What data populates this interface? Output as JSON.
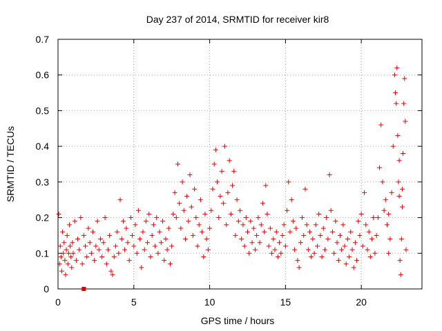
{
  "chart_data": {
    "type": "scatter",
    "title": "Day 237 of 2014, SRMTID for receiver kir8",
    "xlabel": "GPS time / hours",
    "ylabel": "SRMTID / TECUs",
    "xlim": [
      0,
      24
    ],
    "ylim": [
      0,
      0.7
    ],
    "xticks": [
      0,
      5,
      10,
      15,
      20
    ],
    "xtick_labels": [
      "0",
      "5",
      "10",
      "15",
      "20"
    ],
    "yticks": [
      0,
      0.1,
      0.2,
      0.3,
      0.4,
      0.5,
      0.6,
      0.7
    ],
    "ytick_labels": [
      "0",
      "0.1",
      "0.2",
      "0.3",
      "0.4",
      "0.5",
      "0.6",
      "0.7"
    ],
    "grid": true,
    "marker": "plus",
    "color": "#e00000",
    "series": [
      {
        "name": "SRMTID",
        "points": [
          [
            0.05,
            0.21
          ],
          [
            0.1,
            0.07
          ],
          [
            0.15,
            0.12
          ],
          [
            0.2,
            0.09
          ],
          [
            0.25,
            0.05
          ],
          [
            0.3,
            0.16
          ],
          [
            0.35,
            0.1
          ],
          [
            0.4,
            0.13
          ],
          [
            0.45,
            0.08
          ],
          [
            0.5,
            0.04
          ],
          [
            0.55,
            0.11
          ],
          [
            0.6,
            0.15
          ],
          [
            0.65,
            0.07
          ],
          [
            0.7,
            0.1
          ],
          [
            0.75,
            0.18
          ],
          [
            0.8,
            0.12
          ],
          [
            0.85,
            0.09
          ],
          [
            0.9,
            0.06
          ],
          [
            0.95,
            0.13
          ],
          [
            1.0,
            0.1
          ],
          [
            1.1,
            0.19
          ],
          [
            1.2,
            0.08
          ],
          [
            1.3,
            0.14
          ],
          [
            1.4,
            0.11
          ],
          [
            1.5,
            0.2
          ],
          [
            1.6,
            0.07
          ],
          [
            1.7,
            0.15
          ],
          [
            1.8,
            0.12
          ],
          [
            1.9,
            0.09
          ],
          [
            2.0,
            0.17
          ],
          [
            2.1,
            0.13
          ],
          [
            2.2,
            0.1
          ],
          [
            2.3,
            0.16
          ],
          [
            2.4,
            0.08
          ],
          [
            2.5,
            0.12
          ],
          [
            2.6,
            0.19
          ],
          [
            2.7,
            0.11
          ],
          [
            2.8,
            0.14
          ],
          [
            2.9,
            0.09
          ],
          [
            3.0,
            0.13
          ],
          [
            3.1,
            0.2
          ],
          [
            3.2,
            0.07
          ],
          [
            3.3,
            0.11
          ],
          [
            3.4,
            0.15
          ],
          [
            3.5,
            0.05
          ],
          [
            3.6,
            0.04
          ],
          [
            3.7,
            0.09
          ],
          [
            3.8,
            0.12
          ],
          [
            3.9,
            0.16
          ],
          [
            4.0,
            0.1
          ],
          [
            4.1,
            0.25
          ],
          [
            4.2,
            0.14
          ],
          [
            4.3,
            0.19
          ],
          [
            4.4,
            0.11
          ],
          [
            4.5,
            0.17
          ],
          [
            4.6,
            0.13
          ],
          [
            4.7,
            0.08
          ],
          [
            4.8,
            0.2
          ],
          [
            4.9,
            0.15
          ],
          [
            5.0,
            0.12
          ],
          [
            5.1,
            0.18
          ],
          [
            5.2,
            0.1
          ],
          [
            5.3,
            0.22
          ],
          [
            5.4,
            0.14
          ],
          [
            5.5,
            0.06
          ],
          [
            5.6,
            0.16
          ],
          [
            5.7,
            0.11
          ],
          [
            5.8,
            0.19
          ],
          [
            5.9,
            0.13
          ],
          [
            6.0,
            0.21
          ],
          [
            6.1,
            0.09
          ],
          [
            6.2,
            0.15
          ],
          [
            6.3,
            0.18
          ],
          [
            6.4,
            0.12
          ],
          [
            6.5,
            0.2
          ],
          [
            6.6,
            0.1
          ],
          [
            6.7,
            0.16
          ],
          [
            6.8,
            0.13
          ],
          [
            6.9,
            0.19
          ],
          [
            7.0,
            0.08
          ],
          [
            7.1,
            0.14
          ],
          [
            7.2,
            0.11
          ],
          [
            7.3,
            0.17
          ],
          [
            7.4,
            0.07
          ],
          [
            7.5,
            0.12
          ],
          [
            7.6,
            0.21
          ],
          [
            7.7,
            0.27
          ],
          [
            7.8,
            0.2
          ],
          [
            7.9,
            0.35
          ],
          [
            8.0,
            0.24
          ],
          [
            8.1,
            0.17
          ],
          [
            8.2,
            0.3
          ],
          [
            8.3,
            0.22
          ],
          [
            8.4,
            0.14
          ],
          [
            8.5,
            0.26
          ],
          [
            8.6,
            0.19
          ],
          [
            8.7,
            0.32
          ],
          [
            8.8,
            0.23
          ],
          [
            8.9,
            0.15
          ],
          [
            9.0,
            0.28
          ],
          [
            9.1,
            0.2
          ],
          [
            9.2,
            0.12
          ],
          [
            9.3,
            0.18
          ],
          [
            9.4,
            0.25
          ],
          [
            9.5,
            0.16
          ],
          [
            9.6,
            0.09
          ],
          [
            9.7,
            0.21
          ],
          [
            9.8,
            0.14
          ],
          [
            9.9,
            0.11
          ],
          [
            10.0,
            0.17
          ],
          [
            10.1,
            0.22
          ],
          [
            10.2,
            0.28
          ],
          [
            10.3,
            0.35
          ],
          [
            10.4,
            0.39
          ],
          [
            10.5,
            0.3
          ],
          [
            10.6,
            0.2
          ],
          [
            10.7,
            0.26
          ],
          [
            10.8,
            0.33
          ],
          [
            10.9,
            0.24
          ],
          [
            11.0,
            0.4
          ],
          [
            11.1,
            0.18
          ],
          [
            11.2,
            0.27
          ],
          [
            11.3,
            0.36
          ],
          [
            11.4,
            0.21
          ],
          [
            11.5,
            0.29
          ],
          [
            11.6,
            0.33
          ],
          [
            11.7,
            0.15
          ],
          [
            11.8,
            0.25
          ],
          [
            11.9,
            0.19
          ],
          [
            12.0,
            0.22
          ],
          [
            12.1,
            0.14
          ],
          [
            12.2,
            0.18
          ],
          [
            12.3,
            0.12
          ],
          [
            12.4,
            0.2
          ],
          [
            12.5,
            0.16
          ],
          [
            12.6,
            0.1
          ],
          [
            12.7,
            0.19
          ],
          [
            12.8,
            0.13
          ],
          [
            12.9,
            0.17
          ],
          [
            13.0,
            0.11
          ],
          [
            13.1,
            0.15
          ],
          [
            13.2,
            0.2
          ],
          [
            13.3,
            0.13
          ],
          [
            13.4,
            0.18
          ],
          [
            13.5,
            0.24
          ],
          [
            13.6,
            0.16
          ],
          [
            13.7,
            0.29
          ],
          [
            13.8,
            0.21
          ],
          [
            13.9,
            0.12
          ],
          [
            14.0,
            0.17
          ],
          [
            14.1,
            0.1
          ],
          [
            14.2,
            0.14
          ],
          [
            14.3,
            0.11
          ],
          [
            14.4,
            0.16
          ],
          [
            14.5,
            0.09
          ],
          [
            14.6,
            0.13
          ],
          [
            14.7,
            0.1
          ],
          [
            14.8,
            0.15
          ],
          [
            14.9,
            0.18
          ],
          [
            15.0,
            0.12
          ],
          [
            15.1,
            0.22
          ],
          [
            15.2,
            0.3
          ],
          [
            15.3,
            0.16
          ],
          [
            15.4,
            0.25
          ],
          [
            15.5,
            0.19
          ],
          [
            15.6,
            0.11
          ],
          [
            15.7,
            0.17
          ],
          [
            15.8,
            0.08
          ],
          [
            15.9,
            0.06
          ],
          [
            16.0,
            0.13
          ],
          [
            16.1,
            0.2
          ],
          [
            16.2,
            0.15
          ],
          [
            16.3,
            0.28
          ],
          [
            16.4,
            0.18
          ],
          [
            16.5,
            0.11
          ],
          [
            16.6,
            0.16
          ],
          [
            16.7,
            0.09
          ],
          [
            16.8,
            0.14
          ],
          [
            16.9,
            0.1
          ],
          [
            17.0,
            0.18
          ],
          [
            17.1,
            0.12
          ],
          [
            17.2,
            0.21
          ],
          [
            17.3,
            0.15
          ],
          [
            17.4,
            0.09
          ],
          [
            17.5,
            0.17
          ],
          [
            17.6,
            0.11
          ],
          [
            17.7,
            0.2
          ],
          [
            17.8,
            0.14
          ],
          [
            17.9,
            0.32
          ],
          [
            18.0,
            0.22
          ],
          [
            18.1,
            0.16
          ],
          [
            18.2,
            0.1
          ],
          [
            18.3,
            0.19
          ],
          [
            18.4,
            0.13
          ],
          [
            18.5,
            0.08
          ],
          [
            18.6,
            0.15
          ],
          [
            18.7,
            0.11
          ],
          [
            18.8,
            0.18
          ],
          [
            18.9,
            0.12
          ],
          [
            19.0,
            0.07
          ],
          [
            19.1,
            0.14
          ],
          [
            19.2,
            0.09
          ],
          [
            19.3,
            0.16
          ],
          [
            19.4,
            0.11
          ],
          [
            19.5,
            0.06
          ],
          [
            19.6,
            0.13
          ],
          [
            19.7,
            0.08
          ],
          [
            19.8,
            0.19
          ],
          [
            19.9,
            0.15
          ],
          [
            20.0,
            0.21
          ],
          [
            20.1,
            0.12
          ],
          [
            20.2,
            0.27
          ],
          [
            20.3,
            0.18
          ],
          [
            20.4,
            0.11
          ],
          [
            20.5,
            0.16
          ],
          [
            20.6,
            0.09
          ],
          [
            20.7,
            0.14
          ],
          [
            20.8,
            0.2
          ],
          [
            20.9,
            0.1
          ],
          [
            21.0,
            0.15
          ],
          [
            21.1,
            0.2
          ],
          [
            21.2,
            0.34
          ],
          [
            21.3,
            0.46
          ],
          [
            21.4,
            0.3
          ],
          [
            21.5,
            0.22
          ],
          [
            21.6,
            0.25
          ],
          [
            21.7,
            0.18
          ],
          [
            21.8,
            0.21
          ],
          [
            21.9,
            0.14
          ],
          [
            22.0,
            0.27
          ],
          [
            22.1,
            0.4
          ],
          [
            22.2,
            0.6
          ],
          [
            22.25,
            0.55
          ],
          [
            22.3,
            0.52
          ],
          [
            22.35,
            0.62
          ],
          [
            22.4,
            0.43
          ],
          [
            22.45,
            0.3
          ],
          [
            22.5,
            0.26
          ],
          [
            22.55,
            0.08
          ],
          [
            22.6,
            0.04
          ],
          [
            22.65,
            0.14
          ],
          [
            22.7,
            0.23
          ],
          [
            22.75,
            0.38
          ],
          [
            22.8,
            0.52
          ],
          [
            22.85,
            0.59
          ],
          [
            22.9,
            0.47
          ],
          [
            22.95,
            0.11
          ],
          [
            22.5,
            0.36
          ],
          [
            22.7,
            0.28
          ],
          [
            21.8,
            0.1
          ]
        ]
      }
    ]
  }
}
